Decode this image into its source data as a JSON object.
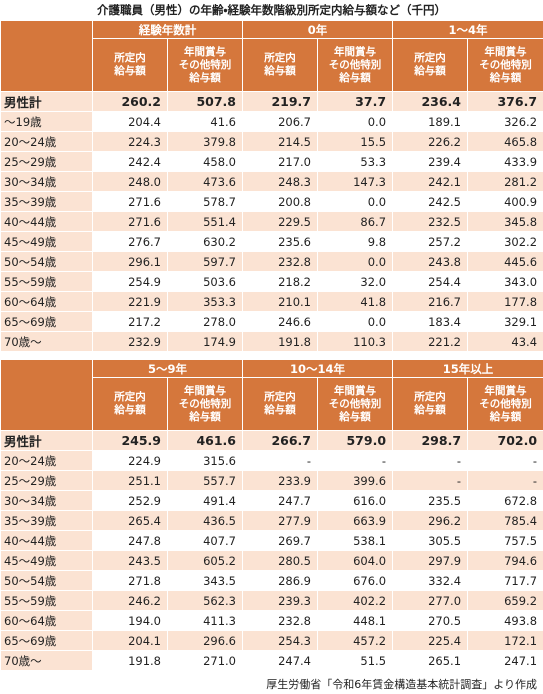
{
  "title": "介護職員（男性）の年齢・経験年数階級別所定内給与額など（千円）",
  "subheaders": [
    [
      "所定内",
      "給与額"
    ],
    [
      "年間賞与",
      "その他特別",
      "給与額"
    ]
  ],
  "tables": [
    {
      "groups": [
        "経験年数計",
        "0年",
        "1～4年"
      ],
      "rows": [
        {
          "label": "男性計",
          "values": [
            "260.2",
            "507.8",
            "219.7",
            "37.7",
            "236.4",
            "376.7"
          ]
        },
        {
          "label": "～19歳",
          "values": [
            "204.4",
            "41.6",
            "206.7",
            "0.0",
            "189.1",
            "326.2"
          ]
        },
        {
          "label": "20～24歳",
          "values": [
            "224.3",
            "379.8",
            "214.5",
            "15.5",
            "226.2",
            "465.8"
          ]
        },
        {
          "label": "25～29歳",
          "values": [
            "242.4",
            "458.0",
            "217.0",
            "53.3",
            "239.4",
            "433.9"
          ]
        },
        {
          "label": "30～34歳",
          "values": [
            "248.0",
            "473.6",
            "248.3",
            "147.3",
            "242.1",
            "281.2"
          ]
        },
        {
          "label": "35～39歳",
          "values": [
            "271.6",
            "578.7",
            "200.8",
            "0.0",
            "242.5",
            "400.9"
          ]
        },
        {
          "label": "40～44歳",
          "values": [
            "271.6",
            "551.4",
            "229.5",
            "86.7",
            "232.5",
            "345.8"
          ]
        },
        {
          "label": "45～49歳",
          "values": [
            "276.7",
            "630.2",
            "235.6",
            "9.8",
            "257.2",
            "302.2"
          ]
        },
        {
          "label": "50～54歳",
          "values": [
            "296.1",
            "597.7",
            "232.8",
            "0.0",
            "243.8",
            "445.6"
          ]
        },
        {
          "label": "55～59歳",
          "values": [
            "254.9",
            "503.6",
            "218.2",
            "32.0",
            "254.4",
            "343.0"
          ]
        },
        {
          "label": "60～64歳",
          "values": [
            "221.9",
            "353.3",
            "210.1",
            "41.8",
            "216.7",
            "177.8"
          ]
        },
        {
          "label": "65～69歳",
          "values": [
            "217.2",
            "278.0",
            "246.6",
            "0.0",
            "183.4",
            "329.1"
          ]
        },
        {
          "label": "70歳～",
          "values": [
            "232.9",
            "174.9",
            "191.8",
            "110.3",
            "221.2",
            "43.4"
          ]
        }
      ]
    },
    {
      "groups": [
        "5～9年",
        "10～14年",
        "15年以上"
      ],
      "rows": [
        {
          "label": "男性計",
          "values": [
            "245.9",
            "461.6",
            "266.7",
            "579.0",
            "298.7",
            "702.0"
          ]
        },
        {
          "label": "20～24歳",
          "values": [
            "224.9",
            "315.6",
            "-",
            "-",
            "-",
            "-"
          ]
        },
        {
          "label": "25～29歳",
          "values": [
            "251.1",
            "557.7",
            "233.9",
            "399.6",
            "-",
            "-"
          ]
        },
        {
          "label": "30～34歳",
          "values": [
            "252.9",
            "491.4",
            "247.7",
            "616.0",
            "235.5",
            "672.8"
          ]
        },
        {
          "label": "35～39歳",
          "values": [
            "265.4",
            "436.5",
            "277.9",
            "663.9",
            "296.2",
            "785.4"
          ]
        },
        {
          "label": "40～44歳",
          "values": [
            "247.8",
            "407.7",
            "269.7",
            "538.1",
            "305.5",
            "757.5"
          ]
        },
        {
          "label": "45～49歳",
          "values": [
            "243.5",
            "605.2",
            "280.5",
            "604.0",
            "297.9",
            "794.6"
          ]
        },
        {
          "label": "50～54歳",
          "values": [
            "271.8",
            "343.5",
            "286.9",
            "676.0",
            "332.4",
            "717.7"
          ]
        },
        {
          "label": "55～59歳",
          "values": [
            "246.2",
            "562.3",
            "239.3",
            "402.2",
            "277.0",
            "659.2"
          ]
        },
        {
          "label": "60～64歳",
          "values": [
            "194.0",
            "411.3",
            "232.8",
            "448.1",
            "270.5",
            "493.8"
          ]
        },
        {
          "label": "65～69歳",
          "values": [
            "204.1",
            "296.6",
            "254.3",
            "457.2",
            "225.4",
            "172.1"
          ]
        },
        {
          "label": "70歳～",
          "values": [
            "191.8",
            "271.0",
            "247.4",
            "51.5",
            "265.1",
            "247.1"
          ]
        }
      ]
    }
  ],
  "source": "厚生労働省「令和6年賃金構造基本統計調査」より作成"
}
